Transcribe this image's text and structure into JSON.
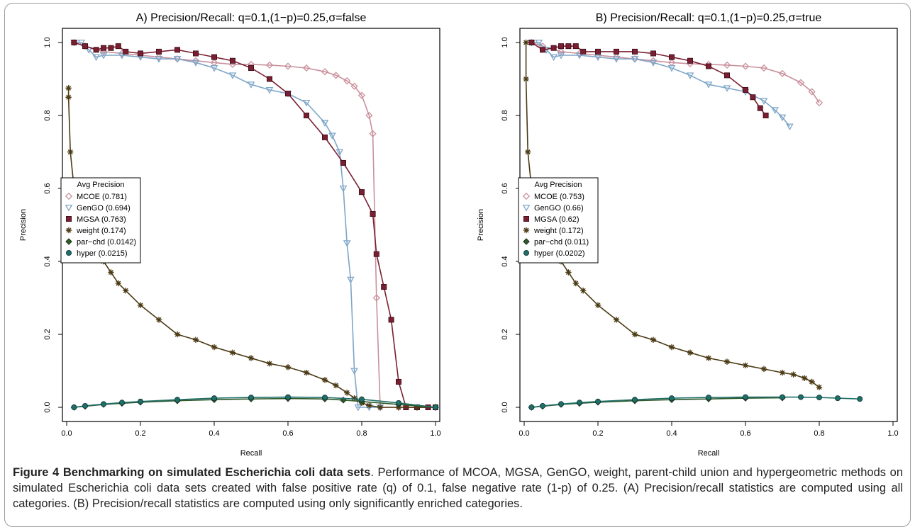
{
  "figure": {
    "caption_title": "Figure 4 Benchmarking on simulated Escherichia coli data sets",
    "caption_body": ". Performance of MCOA, MGSA, GenGO, weight, parent-child union and hypergeometric methods on simulated Escherichia coli data sets created with false positive rate (q) of 0.1, false negative rate (1-p) of 0.25. (A) Precision/recall statistics are computed using all categories. (B) Precision/recall statistics are computed using only significantly enriched categories."
  },
  "chart_data": [
    {
      "type": "line",
      "title": "A) Precision/Recall: q=0.1,(1−p)=0.25,σ=false",
      "xlabel": "Recall",
      "ylabel": "Precision",
      "xlim": [
        0,
        1
      ],
      "ylim": [
        0,
        1
      ],
      "xticks": [
        "0.0",
        "0.2",
        "0.4",
        "0.6",
        "0.8",
        "1.0"
      ],
      "yticks": [
        "0.0",
        "0.2",
        "0.4",
        "0.6",
        "0.8",
        "1.0"
      ],
      "legend_title": "Avg Precision",
      "legend_position": "left",
      "series": [
        {
          "name": "MCOE (0.781)",
          "color": "#c9909c",
          "marker": "diamond",
          "x": [
            0.02,
            0.05,
            0.1,
            0.15,
            0.2,
            0.25,
            0.3,
            0.35,
            0.4,
            0.45,
            0.5,
            0.55,
            0.6,
            0.65,
            0.7,
            0.73,
            0.76,
            0.78,
            0.8,
            0.82,
            0.83,
            0.84,
            0.85,
            0.9,
            0.95,
            1.0
          ],
          "y": [
            1.0,
            0.99,
            0.975,
            0.97,
            0.965,
            0.96,
            0.955,
            0.95,
            0.945,
            0.94,
            0.94,
            0.938,
            0.935,
            0.93,
            0.92,
            0.91,
            0.895,
            0.88,
            0.855,
            0.8,
            0.75,
            0.3,
            0.0,
            0.0,
            0.0,
            0.0
          ]
        },
        {
          "name": "GenGO (0.694)",
          "color": "#7ea6c8",
          "marker": "triangle-down",
          "x": [
            0.02,
            0.04,
            0.06,
            0.08,
            0.1,
            0.15,
            0.2,
            0.25,
            0.3,
            0.35,
            0.4,
            0.45,
            0.5,
            0.55,
            0.6,
            0.65,
            0.7,
            0.72,
            0.74,
            0.75,
            0.76,
            0.77,
            0.78,
            0.79,
            0.82,
            0.85
          ],
          "y": [
            1.0,
            1.0,
            0.98,
            0.96,
            0.965,
            0.965,
            0.96,
            0.955,
            0.955,
            0.945,
            0.93,
            0.91,
            0.885,
            0.87,
            0.86,
            0.835,
            0.78,
            0.745,
            0.7,
            0.6,
            0.45,
            0.35,
            0.1,
            0.0,
            0.0,
            0.0
          ]
        },
        {
          "name": "MGSA (0.763)",
          "color": "#7a1f32",
          "marker": "square",
          "x": [
            0.02,
            0.05,
            0.08,
            0.1,
            0.12,
            0.14,
            0.16,
            0.2,
            0.25,
            0.3,
            0.35,
            0.4,
            0.45,
            0.5,
            0.55,
            0.6,
            0.65,
            0.7,
            0.75,
            0.8,
            0.83,
            0.84,
            0.86,
            0.88,
            0.9,
            0.92,
            0.95,
            0.98,
            1.0
          ],
          "y": [
            1.0,
            0.99,
            0.98,
            0.985,
            0.985,
            0.99,
            0.975,
            0.97,
            0.975,
            0.98,
            0.97,
            0.96,
            0.95,
            0.93,
            0.9,
            0.86,
            0.8,
            0.74,
            0.67,
            0.59,
            0.53,
            0.42,
            0.33,
            0.24,
            0.07,
            0.0,
            0.0,
            0.0,
            0.0
          ]
        },
        {
          "name": "weight (0.174)",
          "color": "#4b3a14",
          "marker": "star",
          "x": [
            0.005,
            0.005,
            0.01,
            0.02,
            0.05,
            0.08,
            0.1,
            0.12,
            0.14,
            0.16,
            0.2,
            0.25,
            0.3,
            0.35,
            0.4,
            0.45,
            0.5,
            0.55,
            0.6,
            0.65,
            0.7,
            0.73,
            0.76,
            0.78,
            0.8,
            0.82,
            0.85,
            0.9,
            0.95,
            1.0
          ],
          "y": [
            0.875,
            0.85,
            0.7,
            0.6,
            0.52,
            0.44,
            0.4,
            0.37,
            0.34,
            0.32,
            0.28,
            0.24,
            0.2,
            0.185,
            0.165,
            0.15,
            0.135,
            0.12,
            0.11,
            0.095,
            0.075,
            0.06,
            0.04,
            0.025,
            0.012,
            0.005,
            0.0,
            0.0,
            0.0,
            0.0
          ]
        },
        {
          "name": "par−chd (0.0142)",
          "color": "#2f5a2a",
          "marker": "diamond-filled",
          "x": [
            0.02,
            0.05,
            0.1,
            0.15,
            0.2,
            0.3,
            0.4,
            0.5,
            0.6,
            0.7,
            0.75,
            0.8,
            0.9,
            1.0
          ],
          "y": [
            0.0,
            0.003,
            0.008,
            0.011,
            0.014,
            0.018,
            0.021,
            0.023,
            0.024,
            0.023,
            0.02,
            0.016,
            0.008,
            0.0
          ]
        },
        {
          "name": "hyper (0.0215)",
          "color": "#1f6e68",
          "marker": "circle",
          "x": [
            0.02,
            0.05,
            0.1,
            0.15,
            0.2,
            0.3,
            0.4,
            0.5,
            0.6,
            0.7,
            0.8,
            0.9,
            1.0
          ],
          "y": [
            0.0,
            0.004,
            0.009,
            0.013,
            0.016,
            0.021,
            0.025,
            0.027,
            0.028,
            0.027,
            0.022,
            0.012,
            0.0
          ]
        }
      ]
    },
    {
      "type": "line",
      "title": "B) Precision/Recall: q=0.1,(1−p)=0.25,σ=true",
      "xlabel": "Recall",
      "ylabel": "Precision",
      "xlim": [
        0,
        1
      ],
      "ylim": [
        0,
        1
      ],
      "xticks": [
        "0.0",
        "0.2",
        "0.4",
        "0.6",
        "0.8",
        "1.0"
      ],
      "yticks": [
        "0.0",
        "0.2",
        "0.4",
        "0.6",
        "0.8",
        "1.0"
      ],
      "legend_title": "Avg Precision",
      "legend_position": "left",
      "series": [
        {
          "name": "MCOE (0.753)",
          "color": "#c9909c",
          "marker": "diamond",
          "x": [
            0.02,
            0.05,
            0.1,
            0.15,
            0.2,
            0.25,
            0.3,
            0.35,
            0.4,
            0.45,
            0.5,
            0.55,
            0.6,
            0.65,
            0.7,
            0.75,
            0.78,
            0.8
          ],
          "y": [
            1.0,
            0.99,
            0.975,
            0.97,
            0.965,
            0.96,
            0.955,
            0.95,
            0.945,
            0.942,
            0.94,
            0.938,
            0.935,
            0.93,
            0.915,
            0.89,
            0.865,
            0.835
          ]
        },
        {
          "name": "GenGO (0.66)",
          "color": "#7ea6c8",
          "marker": "triangle-down",
          "x": [
            0.02,
            0.04,
            0.06,
            0.08,
            0.1,
            0.15,
            0.2,
            0.25,
            0.3,
            0.35,
            0.4,
            0.45,
            0.5,
            0.55,
            0.6,
            0.65,
            0.68,
            0.7,
            0.72
          ],
          "y": [
            1.0,
            1.0,
            0.98,
            0.96,
            0.965,
            0.965,
            0.96,
            0.955,
            0.955,
            0.945,
            0.93,
            0.91,
            0.885,
            0.875,
            0.865,
            0.84,
            0.815,
            0.795,
            0.77
          ]
        },
        {
          "name": "MGSA (0.62)",
          "color": "#7a1f32",
          "marker": "square",
          "x": [
            0.02,
            0.05,
            0.08,
            0.1,
            0.12,
            0.14,
            0.16,
            0.2,
            0.25,
            0.3,
            0.35,
            0.4,
            0.45,
            0.5,
            0.55,
            0.6,
            0.62,
            0.64,
            0.655
          ],
          "y": [
            1.0,
            0.98,
            0.985,
            0.99,
            0.99,
            0.99,
            0.975,
            0.975,
            0.975,
            0.975,
            0.97,
            0.96,
            0.95,
            0.935,
            0.91,
            0.87,
            0.85,
            0.82,
            0.8
          ]
        },
        {
          "name": "weight (0.172)",
          "color": "#4b3a14",
          "marker": "star",
          "x": [
            0.005,
            0.005,
            0.01,
            0.02,
            0.05,
            0.08,
            0.1,
            0.12,
            0.14,
            0.16,
            0.2,
            0.25,
            0.3,
            0.35,
            0.4,
            0.45,
            0.5,
            0.55,
            0.6,
            0.65,
            0.7,
            0.73,
            0.76,
            0.78,
            0.8
          ],
          "y": [
            1.0,
            0.9,
            0.7,
            0.6,
            0.52,
            0.44,
            0.4,
            0.37,
            0.34,
            0.32,
            0.28,
            0.24,
            0.2,
            0.185,
            0.165,
            0.15,
            0.135,
            0.125,
            0.115,
            0.105,
            0.095,
            0.09,
            0.08,
            0.07,
            0.055
          ]
        },
        {
          "name": "par−chd (0.011)",
          "color": "#2f5a2a",
          "marker": "diamond-filled",
          "x": [
            0.02,
            0.05,
            0.1,
            0.15,
            0.2,
            0.3,
            0.4,
            0.5,
            0.6,
            0.7
          ],
          "y": [
            0.0,
            0.003,
            0.008,
            0.011,
            0.014,
            0.018,
            0.021,
            0.023,
            0.025,
            0.026
          ]
        },
        {
          "name": "hyper (0.0202)",
          "color": "#1f6e68",
          "marker": "circle",
          "x": [
            0.02,
            0.05,
            0.1,
            0.15,
            0.2,
            0.3,
            0.4,
            0.5,
            0.6,
            0.7,
            0.75,
            0.8,
            0.85,
            0.91
          ],
          "y": [
            0.0,
            0.004,
            0.009,
            0.013,
            0.016,
            0.021,
            0.025,
            0.027,
            0.028,
            0.028,
            0.028,
            0.027,
            0.025,
            0.023
          ]
        }
      ]
    }
  ]
}
